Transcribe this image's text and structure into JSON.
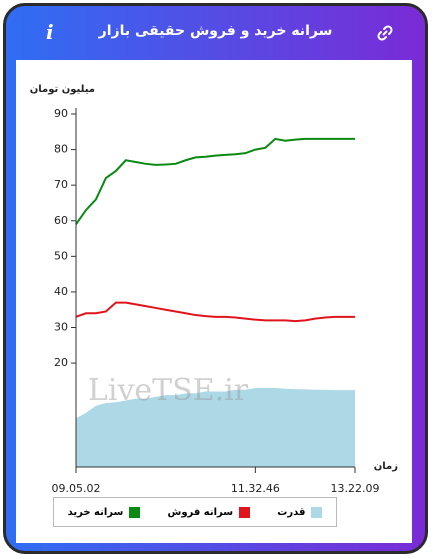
{
  "header": {
    "title": "سرانه خرید و فروش حقیقی بازار",
    "info": "i"
  },
  "chart_data": {
    "type": "line",
    "y_label": "میلیون تومان",
    "x_label": "زمان",
    "watermark": "LiveTSE.ir",
    "categories": [
      "09.05.02",
      null,
      null,
      null,
      null,
      null,
      null,
      null,
      null,
      null,
      null,
      null,
      null,
      null,
      null,
      null,
      null,
      null,
      "11.32.46",
      null,
      null,
      null,
      null,
      null,
      null,
      null,
      null,
      null,
      "13.22.09"
    ],
    "series": [
      {
        "name": "سرانه خرید",
        "color": "#0a8a12",
        "style": "line",
        "values": [
          59,
          63,
          66,
          72,
          74,
          77,
          76.5,
          76,
          75.7,
          75.8,
          76,
          77,
          77.8,
          78,
          78.3,
          78.5,
          78.7,
          79,
          80,
          80.5,
          83,
          82.5,
          82.8,
          83,
          83,
          83,
          83,
          83,
          83
        ]
      },
      {
        "name": "سرانه فروش",
        "color": "#e0141c",
        "style": "line",
        "values": [
          33,
          34,
          34,
          34.5,
          37,
          37,
          36.5,
          36,
          35.5,
          35,
          34.5,
          34,
          33.5,
          33.2,
          33,
          33,
          32.8,
          32.5,
          32.2,
          32,
          32,
          32,
          31.8,
          32,
          32.5,
          32.8,
          33,
          33,
          33
        ]
      },
      {
        "name": "قدرت",
        "color": "#add8e6",
        "style": "area",
        "values": [
          4.5,
          6,
          8,
          8.8,
          9,
          9.5,
          10,
          10,
          10.5,
          11,
          11,
          11.5,
          11.5,
          12,
          12,
          12,
          12.5,
          12.5,
          13,
          13,
          13,
          12.8,
          12.7,
          12.6,
          12.5,
          12.5,
          12.4,
          12.4,
          12.4
        ]
      }
    ],
    "ylim": [
      -9.2,
      90
    ],
    "yticks": [
      20,
      30,
      40,
      50,
      60,
      70,
      80,
      90
    ],
    "grid": false
  }
}
